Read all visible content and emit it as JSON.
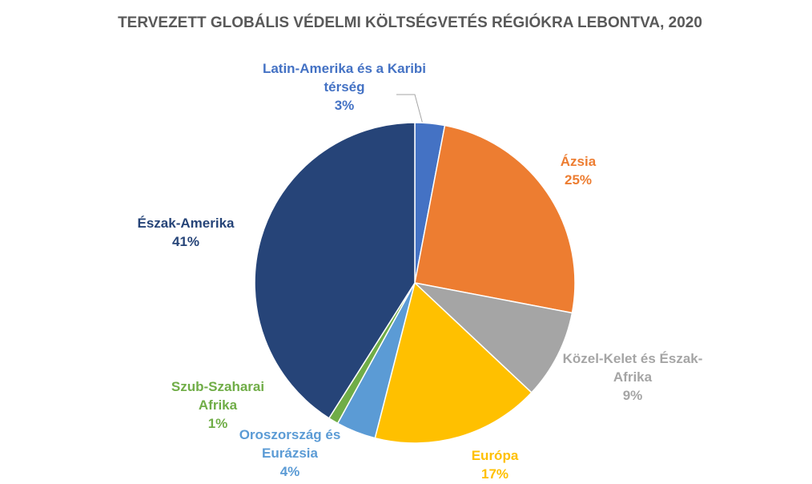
{
  "chart_data": {
    "type": "pie",
    "title": "TERVEZETT GLOBÁLIS VÉDELMI KÖLTSÉGVETÉS RÉGIÓKRA LEBONTVA, 2020",
    "categories": [
      "Latin-Amerika és a Karibi térség",
      "Ázsia",
      "Közel-Kelet és Észak-Afrika",
      "Európa",
      "Oroszország és Eurázsia",
      "Szub-Szaharai Afrika",
      "Észak-Amerika"
    ],
    "values": [
      3,
      25,
      9,
      17,
      4,
      1,
      41
    ],
    "value_labels": [
      "3%",
      "25%",
      "9%",
      "17%",
      "4%",
      "1%",
      "41%"
    ],
    "colors": [
      "#4472c4",
      "#ed7d31",
      "#a5a5a5",
      "#ffc000",
      "#5b9bd5",
      "#70ad47",
      "#264478"
    ]
  }
}
